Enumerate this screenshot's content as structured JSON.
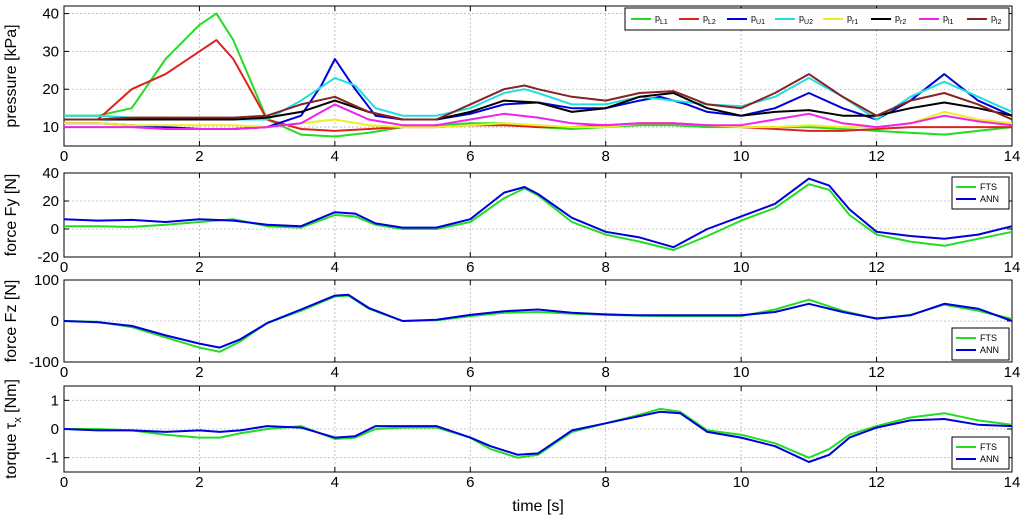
{
  "chart_data": [
    {
      "type": "line",
      "ylabel": "pressure [kPa]",
      "xlim": [
        0,
        14
      ],
      "ylim": [
        5,
        42
      ],
      "xticks": [
        0,
        2,
        4,
        6,
        8,
        10,
        12,
        14
      ],
      "yticks": [
        10,
        20,
        30,
        40
      ],
      "grid": true,
      "legend_position": "top-right",
      "series": [
        {
          "name": "p",
          "sub": "L1",
          "color": "#22dd22",
          "x": [
            0,
            0.5,
            1,
            1.5,
            2,
            2.25,
            2.5,
            3,
            3.5,
            4,
            4.5,
            5,
            5.5,
            6,
            6.5,
            7,
            7.5,
            8,
            8.5,
            9,
            9.5,
            10,
            10.5,
            11,
            11.5,
            12,
            12.5,
            13,
            13.5,
            14
          ],
          "y": [
            13,
            13,
            15,
            28,
            37,
            40,
            33,
            12,
            8,
            7.5,
            8.5,
            10,
            10.5,
            11,
            11,
            10,
            9.5,
            10,
            10.5,
            10.5,
            10,
            10,
            10,
            10,
            9.5,
            9,
            8.5,
            8,
            9,
            10
          ]
        },
        {
          "name": "p",
          "sub": "L2",
          "color": "#dd2222",
          "x": [
            0,
            0.5,
            1,
            1.5,
            2,
            2.25,
            2.5,
            3,
            3.5,
            4,
            4.5,
            5,
            5.5,
            6,
            6.5,
            7,
            7.5,
            8,
            8.5,
            9,
            9.5,
            10,
            10.5,
            11,
            11.5,
            12,
            12.5,
            13,
            13.5,
            14
          ],
          "y": [
            12,
            12,
            20,
            24,
            30,
            33,
            28,
            12,
            9.5,
            9,
            9.5,
            10,
            10,
            10.5,
            10.5,
            10,
            10,
            10.5,
            11,
            11,
            10.5,
            10,
            9.5,
            9,
            9,
            9.5,
            10,
            10,
            10,
            10
          ]
        },
        {
          "name": "p",
          "sub": "U1",
          "color": "#0000dd",
          "x": [
            0,
            0.5,
            1,
            1.5,
            2,
            2.5,
            3,
            3.5,
            3.8,
            4,
            4.3,
            4.6,
            5,
            5.5,
            6,
            6.5,
            7,
            7.5,
            8,
            8.5,
            8.8,
            9.2,
            9.5,
            10,
            10.5,
            11,
            11.5,
            12,
            12.5,
            13,
            13.5,
            14
          ],
          "y": [
            11,
            11,
            10.5,
            10,
            9.5,
            9.5,
            10,
            13,
            21,
            28,
            20,
            13,
            12,
            12,
            13.5,
            16,
            16.5,
            15,
            15,
            17,
            18,
            16,
            14,
            13,
            15,
            19,
            15,
            12,
            17,
            24,
            17,
            13
          ]
        },
        {
          "name": "p",
          "sub": "U2",
          "color": "#22dddd",
          "x": [
            0,
            0.5,
            1,
            1.5,
            2,
            2.5,
            3,
            3.5,
            4,
            4.3,
            4.6,
            5,
            5.5,
            6,
            6.5,
            6.8,
            7,
            7.5,
            8,
            8.5,
            9,
            9.5,
            10,
            10.5,
            11,
            11.5,
            12,
            12.5,
            13,
            13.5,
            14
          ],
          "y": [
            13,
            13,
            12.5,
            12.5,
            12,
            12,
            12,
            17,
            23,
            21,
            15,
            13,
            13,
            15,
            19,
            20,
            19,
            16,
            16,
            18,
            17,
            16,
            15.5,
            18,
            23,
            18,
            12,
            18,
            22,
            18,
            14
          ]
        },
        {
          "name": "p",
          "sub": "r1",
          "color": "#eeee22",
          "x": [
            0,
            0.5,
            1,
            1.5,
            2,
            2.5,
            3,
            3.5,
            4,
            4.5,
            5,
            5.5,
            6,
            6.5,
            7,
            7.5,
            8,
            8.5,
            9,
            9.5,
            10,
            10.5,
            11,
            11.5,
            12,
            12.5,
            13,
            13.5,
            14
          ],
          "y": [
            11,
            11,
            10.5,
            10.5,
            10.5,
            10.5,
            10,
            11,
            12,
            10.5,
            10,
            10,
            10.5,
            11,
            10.5,
            10,
            10,
            11,
            11,
            10.5,
            10,
            10,
            10.5,
            10,
            10,
            11,
            14,
            12,
            11
          ]
        },
        {
          "name": "p",
          "sub": "r2",
          "color": "#000000",
          "x": [
            0,
            0.5,
            1,
            1.5,
            2,
            2.5,
            3,
            3.5,
            4,
            4.5,
            5,
            5.5,
            6,
            6.5,
            7,
            7.5,
            8,
            8.5,
            9,
            9.5,
            10,
            10.5,
            11,
            11.5,
            12,
            12.5,
            13,
            13.5,
            14
          ],
          "y": [
            12,
            12,
            12,
            12,
            12,
            12,
            12.5,
            14,
            17,
            14,
            12,
            12,
            14,
            17,
            16.5,
            14,
            15,
            18,
            19,
            15,
            13,
            14,
            14.5,
            13,
            13,
            15,
            16.5,
            15,
            13
          ]
        },
        {
          "name": "p",
          "sub": "l1",
          "color": "#ee22ee",
          "x": [
            0,
            0.5,
            1,
            1.5,
            2,
            2.5,
            3,
            3.5,
            4,
            4.5,
            5,
            5.5,
            6,
            6.5,
            7,
            7.5,
            8,
            8.5,
            9,
            9.5,
            10,
            10.5,
            11,
            11.5,
            12,
            12.5,
            13,
            13.5,
            14
          ],
          "y": [
            10,
            10,
            10,
            9.5,
            9.5,
            9.5,
            10,
            11,
            16,
            12,
            10.5,
            10.5,
            12,
            13.5,
            12.5,
            11,
            10.5,
            11,
            11,
            10.5,
            10.5,
            12,
            13.5,
            11,
            10,
            11,
            13,
            11.5,
            10.5
          ]
        },
        {
          "name": "p",
          "sub": "l2",
          "color": "#882222",
          "x": [
            0,
            0.5,
            1,
            1.5,
            2,
            2.5,
            3,
            3.5,
            4,
            4.5,
            5,
            5.5,
            6,
            6.5,
            6.8,
            7,
            7.5,
            8,
            8.5,
            9,
            9.5,
            10,
            10.5,
            11,
            11.5,
            12,
            12.5,
            13,
            13.5,
            14
          ],
          "y": [
            12,
            12,
            12.5,
            12.5,
            12.5,
            12.5,
            13,
            16,
            18,
            14,
            12,
            12,
            16,
            20,
            21,
            20,
            18,
            17,
            19,
            19.5,
            16,
            15,
            19,
            24,
            18,
            13,
            17,
            19,
            16,
            12
          ]
        }
      ]
    },
    {
      "type": "line",
      "ylabel": "force Fy [N]",
      "xlim": [
        0,
        14
      ],
      "ylim": [
        -20,
        40
      ],
      "xticks": [
        0,
        2,
        4,
        6,
        8,
        10,
        12,
        14
      ],
      "yticks": [
        -20,
        0,
        20,
        40
      ],
      "grid": true,
      "legend_position": "top-right",
      "series": [
        {
          "name": "FTS",
          "color": "#22dd22",
          "x": [
            0,
            0.5,
            1,
            1.5,
            2,
            2.5,
            3,
            3.5,
            4,
            4.3,
            4.6,
            5,
            5.5,
            6,
            6.5,
            6.8,
            7,
            7.5,
            8,
            8.5,
            9,
            9.5,
            10,
            10.5,
            11,
            11.3,
            11.6,
            12,
            12.5,
            13,
            13.5,
            14
          ],
          "y": [
            2,
            2,
            1.5,
            3,
            5,
            7,
            2,
            1,
            10,
            9,
            3,
            0,
            0,
            5,
            22,
            29,
            24,
            5,
            -4,
            -9,
            -15,
            -5,
            6,
            15,
            32,
            28,
            10,
            -4,
            -9,
            -12,
            -7,
            -2
          ]
        },
        {
          "name": "ANN",
          "color": "#0000dd",
          "x": [
            0,
            0.5,
            1,
            1.5,
            2,
            2.5,
            3,
            3.5,
            4,
            4.3,
            4.6,
            5,
            5.5,
            6,
            6.5,
            6.8,
            7,
            7.5,
            8,
            8.5,
            9,
            9.5,
            10,
            10.5,
            11,
            11.3,
            11.6,
            12,
            12.5,
            13,
            13.5,
            14
          ],
          "y": [
            7,
            6,
            6.5,
            5,
            7,
            6,
            3,
            2,
            12,
            11,
            4,
            1,
            1,
            7,
            26,
            30,
            25,
            8,
            -2,
            -6,
            -13,
            0,
            9,
            18,
            36,
            31,
            14,
            -2,
            -5,
            -7,
            -4,
            2
          ]
        }
      ]
    },
    {
      "type": "line",
      "ylabel": "force Fz [N]",
      "xlim": [
        0,
        14
      ],
      "ylim": [
        -100,
        100
      ],
      "xticks": [
        0,
        2,
        4,
        6,
        8,
        10,
        12,
        14
      ],
      "yticks": [
        -100,
        0,
        100
      ],
      "grid": true,
      "legend_position": "bottom-right",
      "series": [
        {
          "name": "FTS",
          "color": "#22dd22",
          "x": [
            0,
            0.5,
            1,
            1.5,
            2,
            2.3,
            2.6,
            3,
            3.5,
            4,
            4.2,
            4.5,
            5,
            5.5,
            6,
            6.5,
            7,
            7.5,
            8,
            8.5,
            9,
            9.5,
            10,
            10.5,
            11,
            11.5,
            12,
            12.5,
            13,
            13.5,
            14
          ],
          "y": [
            0,
            -2,
            -15,
            -40,
            -65,
            -75,
            -50,
            -5,
            25,
            60,
            62,
            30,
            0,
            2,
            12,
            20,
            22,
            18,
            15,
            13,
            12,
            12,
            12,
            28,
            52,
            25,
            5,
            15,
            40,
            25,
            5
          ]
        },
        {
          "name": "ANN",
          "color": "#0000dd",
          "x": [
            0,
            0.5,
            1,
            1.5,
            2,
            2.3,
            2.6,
            3,
            3.5,
            4,
            4.2,
            4.5,
            5,
            5.5,
            6,
            6.5,
            7,
            7.5,
            8,
            8.5,
            9,
            9.5,
            10,
            10.5,
            11,
            11.5,
            12,
            12.5,
            13,
            13.5,
            14
          ],
          "y": [
            0,
            -3,
            -12,
            -35,
            -55,
            -65,
            -45,
            -5,
            28,
            62,
            64,
            32,
            0,
            3,
            15,
            24,
            28,
            20,
            16,
            14,
            14,
            14,
            14,
            22,
            42,
            22,
            6,
            14,
            42,
            30,
            0
          ]
        }
      ]
    },
    {
      "type": "line",
      "ylabel": "torque τx [Nm]",
      "ylabel_main": "torque τ",
      "ylabel_sub": "x",
      "ylabel_unit": " [Nm]",
      "xlabel": "time [s]",
      "xlim": [
        0,
        14
      ],
      "ylim": [
        -1.5,
        1.5
      ],
      "xticks": [
        0,
        2,
        4,
        6,
        8,
        10,
        12,
        14
      ],
      "yticks": [
        -1,
        0,
        1
      ],
      "grid": true,
      "legend_position": "bottom-right",
      "series": [
        {
          "name": "FTS",
          "color": "#22dd22",
          "x": [
            0,
            0.5,
            1,
            1.5,
            2,
            2.3,
            2.6,
            3,
            3.5,
            4,
            4.3,
            4.6,
            5,
            5.5,
            6,
            6.3,
            6.7,
            7,
            7.5,
            8,
            8.5,
            8.8,
            9.1,
            9.5,
            10,
            10.5,
            11,
            11.3,
            11.6,
            12,
            12.5,
            13,
            13.5,
            14
          ],
          "y": [
            0,
            0,
            -0.05,
            -0.2,
            -0.3,
            -0.3,
            -0.15,
            0,
            0.1,
            -0.35,
            -0.3,
            0,
            0.05,
            0.05,
            -0.3,
            -0.7,
            -1.0,
            -0.9,
            -0.1,
            0.2,
            0.5,
            0.7,
            0.6,
            -0.05,
            -0.2,
            -0.5,
            -1.0,
            -0.7,
            -0.2,
            0.1,
            0.4,
            0.55,
            0.3,
            0.15
          ]
        },
        {
          "name": "ANN",
          "color": "#0000dd",
          "x": [
            0,
            0.5,
            1,
            1.5,
            2,
            2.3,
            2.6,
            3,
            3.5,
            4,
            4.3,
            4.6,
            5,
            5.5,
            6,
            6.3,
            6.7,
            7,
            7.5,
            8,
            8.5,
            8.8,
            9.1,
            9.5,
            10,
            10.5,
            11,
            11.3,
            11.6,
            12,
            12.5,
            13,
            13.5,
            14
          ],
          "y": [
            0,
            -0.05,
            -0.05,
            -0.1,
            -0.05,
            -0.1,
            -0.05,
            0.1,
            0.05,
            -0.3,
            -0.25,
            0.1,
            0.1,
            0.1,
            -0.3,
            -0.6,
            -0.9,
            -0.85,
            -0.05,
            0.2,
            0.45,
            0.6,
            0.55,
            -0.1,
            -0.3,
            -0.6,
            -1.15,
            -0.9,
            -0.3,
            0.05,
            0.3,
            0.35,
            0.15,
            0.1
          ]
        }
      ]
    }
  ]
}
